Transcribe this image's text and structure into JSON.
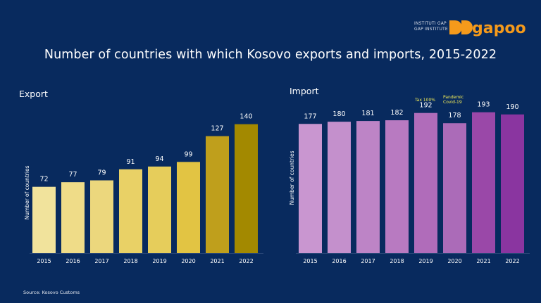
{
  "title": "Number of countries with which Kosovo exports and imports, 2015-2022",
  "logo": {
    "line1": "INSTITUTI GAP",
    "line2": "GAP INSTITUTE",
    "brand": "gapoo"
  },
  "source": "Source: Kosovo Customs",
  "colors": {
    "background": "#082a5e",
    "export_bars": [
      "#f1e39c",
      "#efdc88",
      "#ecd77d",
      "#e9d166",
      "#e6cd5b",
      "#e2c443",
      "#bf9f1c",
      "#a38900"
    ],
    "import_bars": [
      "#c996d0",
      "#c490cc",
      "#bd84c6",
      "#b87ac1",
      "#b06cba",
      "#ab6bb8",
      "#9a48a8",
      "#8a35a0"
    ],
    "annotation": "#f2ec58"
  },
  "chart_data": [
    {
      "type": "bar",
      "title": "Export",
      "ylabel": "Number of countries",
      "categories": [
        "2015",
        "2016",
        "2017",
        "2018",
        "2019",
        "2020",
        "2021",
        "2022"
      ],
      "values": [
        72,
        77,
        79,
        91,
        94,
        99,
        127,
        140
      ],
      "ylim": [
        0,
        155
      ],
      "grid": false,
      "legend": "none"
    },
    {
      "type": "bar",
      "title": "Import",
      "ylabel": "Number of countries",
      "categories": [
        "2015",
        "2016",
        "2017",
        "2018",
        "2019",
        "2020",
        "2021",
        "2022"
      ],
      "values": [
        177,
        180,
        181,
        182,
        192,
        178,
        193,
        190
      ],
      "ylim": [
        0,
        210
      ],
      "grid": false,
      "legend": "none",
      "annotations": [
        {
          "category": "2019",
          "text": "Tax 100%"
        },
        {
          "category": "2020",
          "text": "Pandemic Covid-19"
        }
      ]
    }
  ]
}
